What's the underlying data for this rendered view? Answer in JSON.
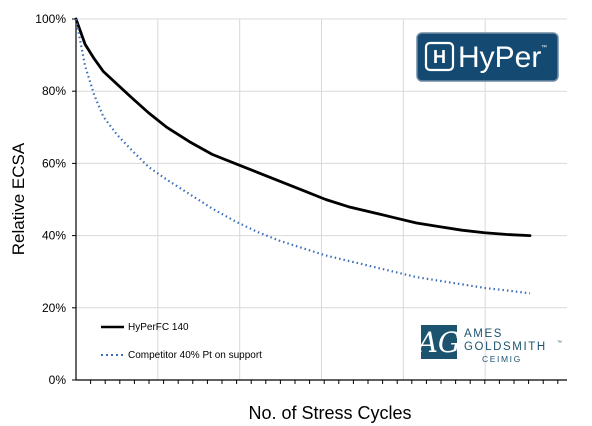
{
  "chart_data": {
    "type": "line",
    "xlabel": "No. of Stress Cycles",
    "ylabel": "Relative ECSA",
    "x_tick_labels": [],
    "x_gridline_count": 5,
    "xlim": [
      0,
      100
    ],
    "ylim": [
      0,
      100
    ],
    "y_ticks": [
      0,
      20,
      40,
      60,
      80,
      100
    ],
    "y_tick_labels": [
      "0%",
      "20%",
      "40%",
      "60%",
      "80%",
      "100%"
    ],
    "grid": "vertical and horizontal gridlines",
    "legend_position": "bottom-left",
    "series": [
      {
        "name": "HyPerFC 140",
        "color": "#000000",
        "style": "solid",
        "x": [
          0,
          2,
          4,
          6,
          9,
          12,
          16,
          20,
          25,
          30,
          35,
          40,
          45,
          50,
          55,
          60,
          65,
          70,
          75,
          80,
          85,
          90,
          95,
          100
        ],
        "y": [
          100,
          93,
          89,
          85.5,
          82,
          78.5,
          74,
          70,
          66,
          62.5,
          60,
          57.5,
          55,
          52.5,
          50,
          48,
          46.5,
          45,
          43.5,
          42.5,
          41.5,
          40.8,
          40.3,
          40
        ]
      },
      {
        "name": "Competitor 40% Pt on support",
        "color": "#3b6fb6",
        "style": "dotted",
        "x": [
          0,
          2,
          4,
          6,
          9,
          12,
          16,
          20,
          25,
          30,
          35,
          40,
          45,
          50,
          55,
          60,
          65,
          70,
          75,
          80,
          85,
          90,
          95,
          100
        ],
        "y": [
          100,
          87,
          79,
          73,
          68,
          64,
          59,
          55.5,
          51.5,
          47.5,
          44,
          41,
          38.5,
          36.5,
          34.5,
          33,
          31.5,
          30,
          28.5,
          27.5,
          26.5,
          25.5,
          24.8,
          24
        ]
      }
    ]
  },
  "logos": {
    "hyper": {
      "wordmark": "HyPer",
      "trademark": "™",
      "badge_letter": "H",
      "background_color": "#144a72",
      "border_color": "#6f8aa3"
    },
    "ames_goldsmith": {
      "monogram": "AG",
      "line1": "AMES",
      "line2": "GOLDSMITH",
      "trademark": "™",
      "line3": "CEIMIG",
      "color": "#1c5470"
    }
  }
}
